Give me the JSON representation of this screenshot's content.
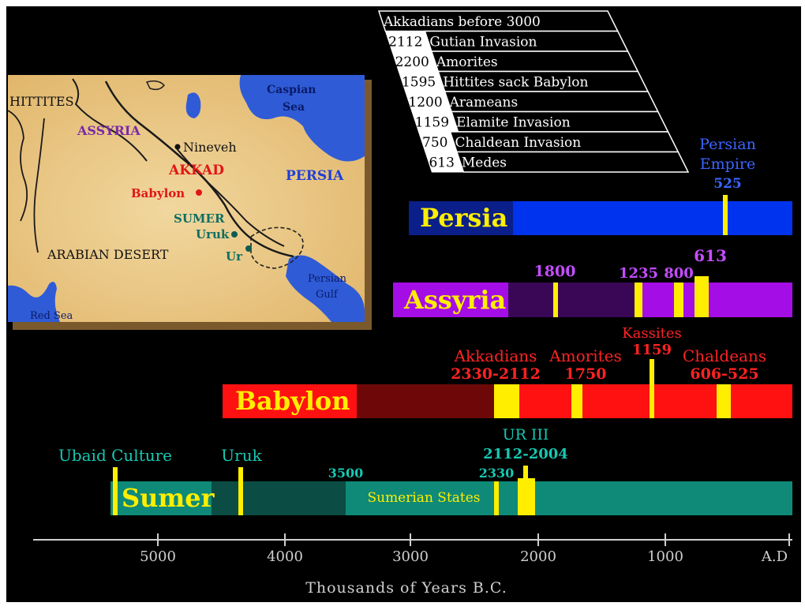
{
  "colors": {
    "background": "#000000",
    "persia_bar": "#0033ee",
    "persia_dark": "#0a1f8a",
    "assyria_bar": "#a50de6",
    "assyria_dark": "#3a0757",
    "babylon_bar": "#ff1111",
    "babylon_dark": "#6e0808",
    "sumer_bar": "#0f8a78",
    "sumer_dark": "#0b4d44",
    "marker": "#ffee00",
    "cyan_label": "#17c8b2",
    "purple_label": "#c44dff",
    "red_label": "#ff2222",
    "blue_label": "#3a66ff",
    "map_land": "#e7c17a",
    "map_water": "#2f5bd6"
  },
  "map": {
    "labels": {
      "hittites": "HITTITES",
      "assyria": "ASSYRIA",
      "nineveh": "Nineveh",
      "akkad": "AKKAD",
      "babylon": "Babylon",
      "sumer": "SUMER",
      "uruk": "Uruk",
      "ur": "Ur",
      "persia": "PERSIA",
      "caspian_1": "Caspian",
      "caspian_2": "Sea",
      "arabian_desert": "ARABIAN DESERT",
      "persian_gulf_1": "Persian",
      "persian_gulf_2": "Gulf",
      "red_sea": "Red Sea"
    }
  },
  "events_table": [
    {
      "year": "",
      "label": "Akkadians before 3000"
    },
    {
      "year": "2112",
      "label": "Gutian Invasion"
    },
    {
      "year": "2200",
      "label": "Amorites"
    },
    {
      "year": "1595",
      "label": "Hittites sack Babylon"
    },
    {
      "year": "1200",
      "label": "Arameans"
    },
    {
      "year": "1159",
      "label": "Elamite Invasion"
    },
    {
      "year": "750",
      "label": "Chaldean Invasion"
    },
    {
      "year": "613",
      "label": "Medes"
    }
  ],
  "timeline": {
    "axis_labels": [
      "5000",
      "4000",
      "3000",
      "2000",
      "1000",
      "A.D"
    ],
    "axis_title": "Thousands of Years B.C.",
    "persia": {
      "name": "Persia",
      "annotation_1": "Persian",
      "annotation_2": "Empire",
      "annotation_3": "525"
    },
    "assyria": {
      "name": "Assyria",
      "marks": [
        "1800",
        "1235",
        "800",
        "613"
      ]
    },
    "babylon": {
      "name": "Babylon",
      "akkadians_1": "Akkadians",
      "akkadians_2": "2330-2112",
      "amorites_1": "Amorites",
      "amorites_2": "1750",
      "kassites_1": "Kassites",
      "kassites_2": "1159",
      "chaldeans_1": "Chaldeans",
      "chaldeans_2": "606-525"
    },
    "sumer": {
      "name": "Sumer",
      "ubaid": "Ubaid Culture",
      "uruk": "Uruk",
      "mark_3500": "3500",
      "states": "Sumerian States",
      "mark_2330": "2330",
      "ur3_1": "UR III",
      "ur3_2": "2112-2004"
    }
  }
}
